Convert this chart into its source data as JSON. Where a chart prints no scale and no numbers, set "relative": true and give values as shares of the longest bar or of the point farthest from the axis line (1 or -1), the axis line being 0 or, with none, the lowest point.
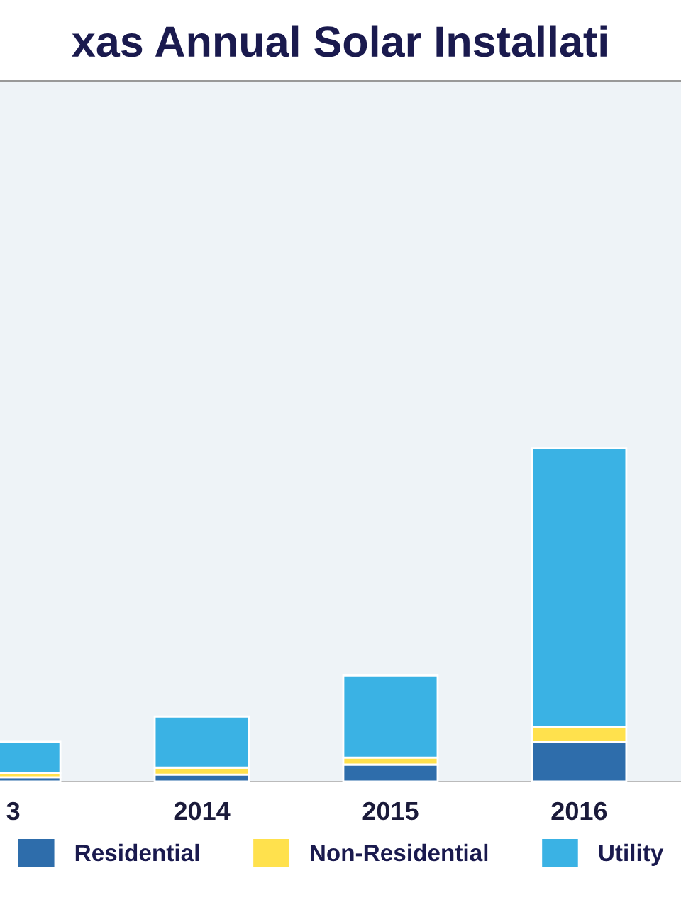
{
  "chart_data": {
    "type": "bar",
    "title": "xas Annual Solar Installati",
    "categories": [
      "3",
      "2014",
      "2015",
      "2016"
    ],
    "stacked": true,
    "relative": true,
    "legend": "bottom",
    "series": [
      {
        "name": "Residential",
        "color": "#2e6dab",
        "values": [
          0.013,
          0.021,
          0.051,
          0.118
        ]
      },
      {
        "name": "Non-Residential",
        "color": "#ffe14d",
        "values": [
          0.013,
          0.021,
          0.021,
          0.047
        ]
      },
      {
        "name": "Utility",
        "color": "#3ab2e4",
        "values": [
          0.093,
          0.153,
          0.246,
          0.835
        ]
      }
    ]
  }
}
